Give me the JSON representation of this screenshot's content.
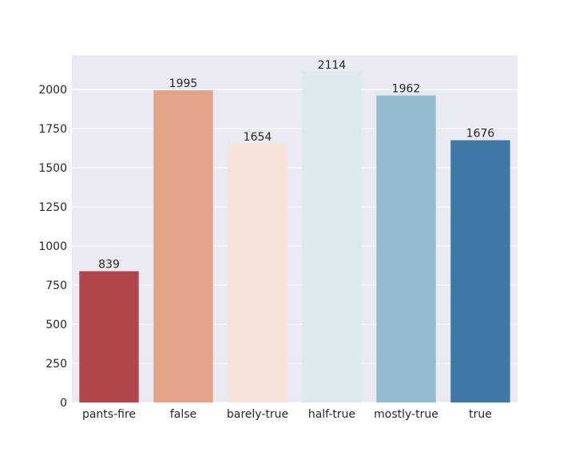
{
  "chart_data": {
    "type": "bar",
    "categories": [
      "pants-fire",
      "false",
      "barely-true",
      "half-true",
      "mostly-true",
      "true"
    ],
    "values": [
      839,
      1995,
      1654,
      2114,
      1962,
      1676
    ],
    "colors": [
      "#b2474b",
      "#e2a389",
      "#f6e2d7",
      "#dde8ef",
      "#93bbd1",
      "#3f77a7"
    ],
    "title": "",
    "xlabel": "",
    "ylabel": "",
    "ylim": [
      0,
      2220
    ],
    "yticks": [
      0,
      250,
      500,
      750,
      1000,
      1250,
      1500,
      1750,
      2000
    ],
    "grid": true,
    "background": "#eaeaf2"
  }
}
